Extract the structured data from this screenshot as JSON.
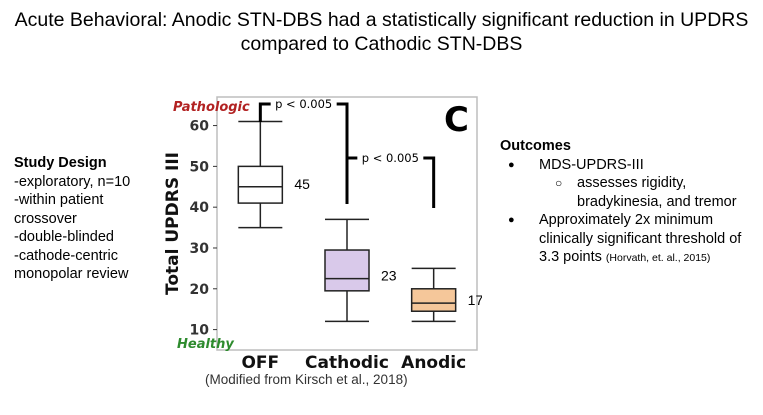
{
  "title_lines": [
    "Acute Behavioral: Anodic STN-DBS had a statistically significant reduction in UPDRS",
    "compared to Cathodic STN-DBS"
  ],
  "study_design": {
    "heading": "Study Design",
    "lines": [
      "-exploratory, n=10",
      "-within patient",
      "crossover",
      "-double-blinded",
      "-cathode-centric",
      "monopolar review"
    ]
  },
  "outcomes": {
    "heading": "Outcomes",
    "item1": "MDS-UPDRS-III",
    "item1_sub": "assesses rigidity, bradykinesia, and tremor",
    "item2": "Approximately 2x minimum clinically significant threshold of 3.3 points",
    "item2_cite": "(Horvath, et. al., 2015)"
  },
  "caption": "(Modified from Kirsch et al., 2018)",
  "chart_data": {
    "type": "boxplot",
    "panel_letter": "C",
    "ylabel": "Total UPDRS III",
    "ylim": [
      5,
      67
    ],
    "yticks": [
      10,
      20,
      30,
      40,
      50,
      60
    ],
    "grid": false,
    "categories": [
      "OFF",
      "Cathodic",
      "Anodic"
    ],
    "boxes": [
      {
        "category": "OFF",
        "min": 35,
        "q1": 41,
        "median": 45,
        "q3": 50,
        "max": 61,
        "label": "45",
        "fill": "#ffffff"
      },
      {
        "category": "Cathodic",
        "min": 12,
        "q1": 19.5,
        "median": 22.5,
        "q3": 29.5,
        "max": 37,
        "label": "23",
        "fill": "#d9c9ea"
      },
      {
        "category": "Anodic",
        "min": 12,
        "q1": 14.5,
        "median": 16.5,
        "q3": 20,
        "max": 25,
        "label": "17",
        "fill": "#f5c79a"
      }
    ],
    "annotations": {
      "top_label": "Pathologic",
      "bottom_label": "Healthy",
      "top_label_color": "#b22222",
      "bottom_label_color": "#2e8b2e"
    },
    "significance": [
      {
        "from": "OFF",
        "to": "Cathodic",
        "text": "p < 0.005"
      },
      {
        "from": "Cathodic",
        "to": "Anodic",
        "text": "p < 0.005"
      }
    ]
  }
}
